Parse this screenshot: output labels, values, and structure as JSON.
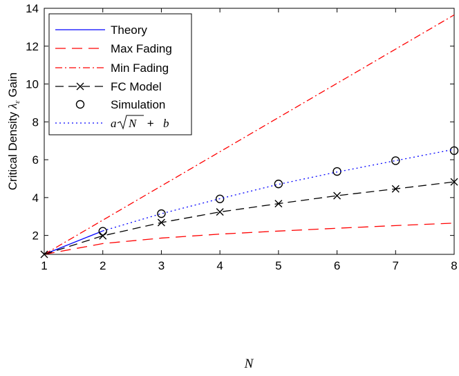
{
  "chart_data": {
    "type": "line",
    "xlabel": "N",
    "ylabel_parts": {
      "pre": "Critical Density ",
      "sym": "λ",
      "sub": "ε",
      "post": " Gain"
    },
    "xlim": [
      1,
      8
    ],
    "ylim": [
      1,
      14
    ],
    "xticks": [
      1,
      2,
      3,
      4,
      5,
      6,
      7,
      8
    ],
    "yticks": [
      2,
      4,
      6,
      8,
      10,
      12,
      14
    ],
    "grid": false,
    "legend_position": "top-left",
    "series": [
      {
        "name": "Theory",
        "color": "#0000ff",
        "dash": "",
        "marker": "none",
        "x": [
          1,
          2
        ],
        "y": [
          1.0,
          2.24
        ]
      },
      {
        "name": "Max Fading",
        "color": "#ff0000",
        "dash": "15 9",
        "marker": "none",
        "x": [
          1,
          2,
          3,
          4,
          5,
          6,
          7,
          8
        ],
        "y": [
          1.0,
          1.57,
          1.86,
          2.07,
          2.23,
          2.38,
          2.52,
          2.65
        ]
      },
      {
        "name": "Min Fading",
        "color": "#ff0000",
        "dash": "10 4 2 4",
        "marker": "none",
        "x": [
          1,
          8
        ],
        "y": [
          1.0,
          13.65
        ]
      },
      {
        "name": "FC Model",
        "color": "#000000",
        "dash": "12 7",
        "marker": "x",
        "x": [
          1,
          2,
          3,
          4,
          5,
          6,
          7,
          8
        ],
        "y": [
          1.0,
          1.98,
          2.68,
          3.24,
          3.68,
          4.1,
          4.46,
          4.83
        ]
      },
      {
        "name": "Simulation",
        "color": "#000000",
        "dash": "",
        "marker": "o",
        "line": false,
        "x": [
          2,
          3,
          4,
          5,
          6,
          7,
          8
        ],
        "y": [
          2.22,
          3.15,
          3.93,
          4.72,
          5.38,
          5.95,
          6.48
        ]
      },
      {
        "name": "a√N + b",
        "color": "#0000ff",
        "dash": "2 4",
        "marker": "none",
        "x": [
          2,
          3,
          4,
          5,
          6,
          7,
          8
        ],
        "y": [
          2.24,
          3.15,
          3.94,
          4.7,
          5.35,
          5.95,
          6.55
        ]
      }
    ],
    "legend_labels": {
      "theory": "Theory",
      "max": "Max Fading",
      "min": "Min Fading",
      "fc": "FC Model",
      "sim": "Simulation",
      "fit": {
        "a": "a",
        "N": "N",
        "rest": " + ",
        "b": "b"
      }
    }
  }
}
